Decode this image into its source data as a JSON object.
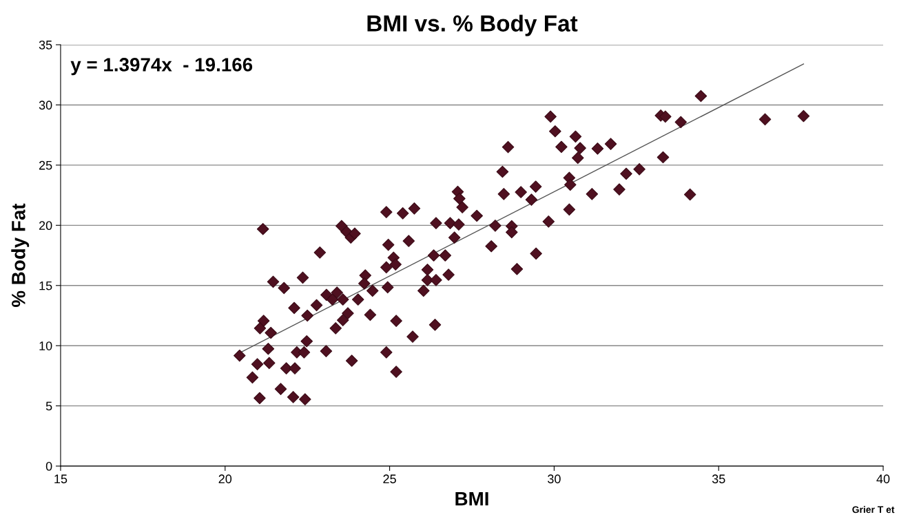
{
  "chart_data": {
    "type": "scatter",
    "title": "BMI vs. % Body Fat",
    "xlabel": "BMI",
    "ylabel": "% Body Fat",
    "annotations": [
      "y = 1.3974x  - 19.166",
      "Grier T et"
    ],
    "xlim": [
      15,
      40
    ],
    "xticks": [
      15,
      20,
      25,
      30,
      35,
      40
    ],
    "ylim": [
      0,
      35
    ],
    "yticks": [
      0,
      5,
      10,
      15,
      20,
      25,
      30,
      35
    ],
    "grid": "y",
    "legend": false,
    "marker": "diamond",
    "series": [
      {
        "color": "#4f1020",
        "x": [
          21.15,
          23.54,
          23.69,
          23.82,
          23.94,
          26.41,
          26.84,
          26.97,
          22.88,
          24.96,
          25.58,
          26.34,
          26.69,
          25.12,
          24.9,
          25.18,
          26.15,
          26.79,
          26.15,
          26.41,
          26.03,
          21.46,
          21.79,
          22.36,
          24.26,
          24.23,
          24.48,
          24.94,
          23.08,
          23.4,
          23.26,
          23.58,
          24.04,
          22.1,
          22.78,
          22.5,
          23.73,
          23.58,
          24.41,
          25.2,
          26.38,
          23.36,
          21.17,
          21.06,
          21.39,
          25.7,
          22.48,
          21.31,
          20.44,
          22.18,
          22.4,
          23.07,
          24.9,
          20.98,
          21.34,
          21.86,
          22.12,
          23.85,
          20.83,
          25.2,
          21.69,
          21.05,
          22.07,
          22.43,
          24.9,
          25.4,
          25.75,
          28.43,
          27.07,
          27.12,
          27.21,
          27.65,
          28.47,
          28.99,
          29.44,
          29.31,
          30.46,
          30.49,
          31.15,
          31.98,
          32.19,
          32.59,
          30.46,
          29.83,
          28.21,
          28.71,
          28.71,
          27.1,
          28.09,
          29.45,
          28.87,
          34.46,
          29.89,
          33.24,
          33.38,
          36.41,
          37.58,
          33.85,
          30.03,
          30.65,
          30.22,
          30.79,
          30.72,
          31.32,
          31.72,
          33.31,
          34.13,
          28.6
        ],
        "values": [
          19.69,
          19.94,
          19.46,
          18.98,
          19.31,
          20.18,
          20.18,
          18.98,
          17.74,
          18.38,
          18.7,
          17.5,
          17.5,
          17.31,
          16.51,
          16.75,
          16.31,
          15.9,
          15.45,
          15.45,
          14.56,
          15.31,
          14.79,
          15.65,
          15.84,
          15.17,
          14.56,
          14.85,
          14.22,
          14.41,
          13.84,
          13.84,
          13.84,
          13.13,
          13.36,
          12.5,
          12.69,
          12.12,
          12.56,
          12.06,
          11.74,
          11.45,
          12.06,
          11.45,
          11.07,
          10.75,
          10.37,
          9.74,
          9.17,
          9.45,
          9.45,
          9.55,
          9.45,
          8.46,
          8.56,
          8.12,
          8.12,
          8.75,
          7.36,
          7.83,
          6.4,
          5.64,
          5.73,
          5.55,
          21.1,
          21.0,
          21.4,
          24.45,
          22.79,
          22.22,
          21.5,
          20.79,
          22.6,
          22.76,
          23.21,
          22.13,
          23.94,
          23.37,
          22.6,
          22.98,
          24.28,
          24.66,
          21.31,
          20.31,
          19.97,
          19.93,
          19.42,
          20.07,
          18.26,
          17.65,
          16.37,
          30.74,
          29.03,
          29.12,
          29.03,
          28.8,
          29.08,
          28.57,
          27.81,
          27.37,
          26.51,
          26.41,
          25.6,
          26.37,
          26.76,
          25.65,
          22.56,
          26.5
        ]
      },
      {
        "type": "line",
        "color": "#555555",
        "marker": "none",
        "line_style": "solid",
        "x": [
          20.44,
          37.58
        ],
        "values": [
          9.4,
          33.4
        ]
      }
    ]
  }
}
